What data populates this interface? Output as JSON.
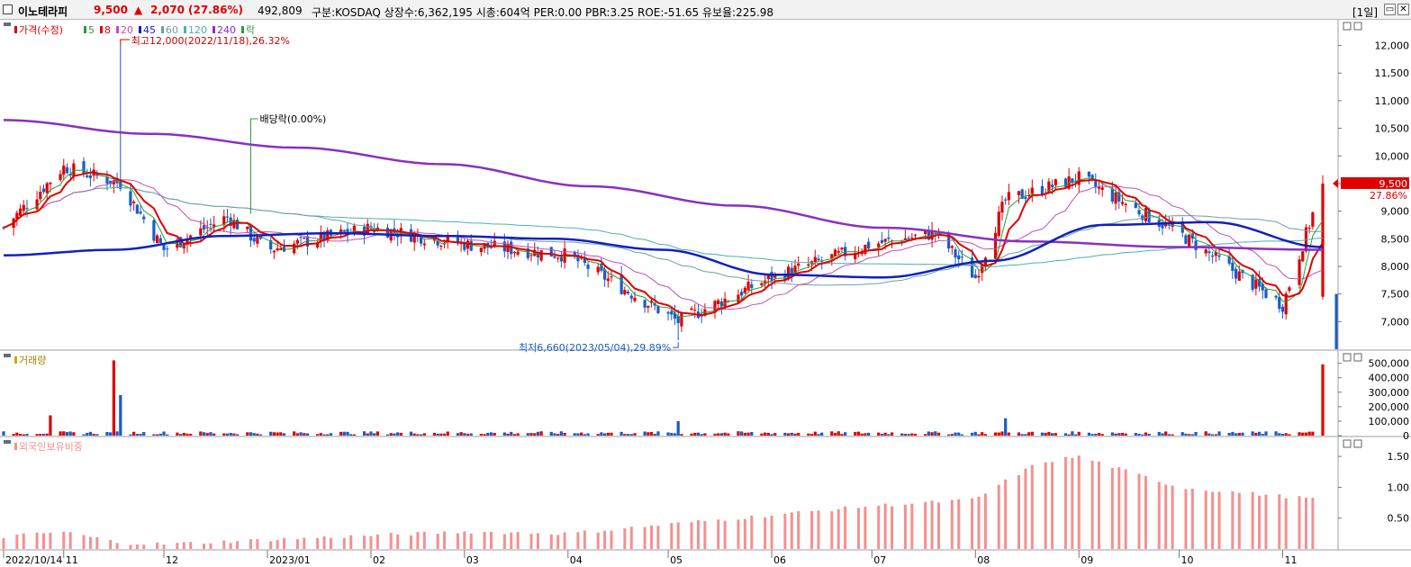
{
  "header": {
    "stock_name": "이노테라피",
    "price": "9,500",
    "change_arrow": "▲",
    "change": "2,070",
    "change_pct": "(27.86%)",
    "volume": "492,809",
    "info": "구분:KOSDAQ 상장수:6,362,195 시총:604억 PER:0.00 PBR:3.25 ROE:-51.65 유보율:225.98",
    "period": "[1일]",
    "min_btn": "▭",
    "close_btn": "✕"
  },
  "colors": {
    "up": "#e00000",
    "down": "#1a5cc8",
    "ma5": "#2e9c3a",
    "ma8": "#e00000",
    "ma20": "#c050b8",
    "ma45": "#1020c0",
    "ma60": "#6aa2a0",
    "ma120": "#4bb0b0",
    "ma240": "#8a2fbf",
    "foreign": "#f49090"
  },
  "chart_data": [
    {
      "type": "candlestick",
      "title": "가격(수정)",
      "legend": [
        {
          "label": "가격(수정)",
          "color": "#e00000"
        },
        {
          "label": "5",
          "color": "#2e9c3a"
        },
        {
          "label": "8",
          "color": "#e00000"
        },
        {
          "label": "20",
          "color": "#c050b8"
        },
        {
          "label": "45",
          "color": "#1020c0"
        },
        {
          "label": "60",
          "color": "#6aa2a0"
        },
        {
          "label": "120",
          "color": "#4bb0b0"
        },
        {
          "label": "240",
          "color": "#8a2fbf"
        },
        {
          "label": "락",
          "color": "#2e9c3a"
        }
      ],
      "ylim": [
        6500,
        12400
      ],
      "yticks": [
        7000,
        7500,
        8000,
        8500,
        9000,
        9500,
        10000,
        10500,
        11000,
        11500,
        12000
      ],
      "ytick_labels": [
        "7,000",
        "7,500",
        "8,000",
        "8,500",
        "9,000",
        "9,500",
        "10,000",
        "10,500",
        "11,000",
        "11,500",
        "12,000"
      ],
      "x_labels": [
        "2022/10/14",
        "11",
        "12",
        "2023/01",
        "02",
        "03",
        "04",
        "05",
        "06",
        "07",
        "08",
        "09",
        "10",
        "11"
      ],
      "ohlc_anchors": [
        {
          "date": "2022/10/14",
          "close": 8700
        },
        {
          "date": "2022/11/01",
          "close": 9800
        },
        {
          "date": "2022/11/18",
          "close": 9500,
          "high": 12000
        },
        {
          "date": "2022/12/01",
          "close": 8300
        },
        {
          "date": "2022/12/20",
          "close": 8900
        },
        {
          "date": "2023/01/01",
          "close": 8300
        },
        {
          "date": "2023/02/01",
          "close": 8700
        },
        {
          "date": "2023/03/01",
          "close": 8400
        },
        {
          "date": "2023/04/01",
          "close": 8200
        },
        {
          "date": "2023/05/04",
          "close": 7000,
          "low": 6660
        },
        {
          "date": "2023/06/01",
          "close": 7800
        },
        {
          "date": "2023/07/01",
          "close": 8400
        },
        {
          "date": "2023/07/20",
          "close": 8600
        },
        {
          "date": "2023/08/01",
          "close": 7800
        },
        {
          "date": "2023/08/10",
          "close": 9200
        },
        {
          "date": "2023/09/01",
          "close": 9600
        },
        {
          "date": "2023/10/01",
          "close": 8600
        },
        {
          "date": "2023/11/01",
          "close": 7300
        },
        {
          "date": "2023/11/13",
          "close": 9500
        }
      ],
      "ma240": [
        10650,
        10400,
        10150,
        9850,
        9450,
        9100,
        8700,
        8450,
        8350,
        8300
      ],
      "ma45": [
        8200,
        8300,
        8550,
        8600,
        8550,
        8500,
        8300,
        7850,
        7800,
        8100,
        8750,
        8800,
        8350
      ],
      "annotations": {
        "high": "최고12,000(2022/11/18),26.32%",
        "low": "최저6,660(2023/05/04),29.89%",
        "dividend": "배당락(0.00%)"
      },
      "last_price_label": "9,500",
      "last_change_label": "27.86%"
    },
    {
      "type": "bar",
      "title": "거래량",
      "ylim": [
        0,
        560000
      ],
      "yticks": [
        0,
        100000,
        200000,
        300000,
        400000,
        500000
      ],
      "ytick_labels": [
        "0",
        "100,000",
        "200,000",
        "300,000",
        "400,000",
        "500,000"
      ],
      "spikes": [
        {
          "date": "2022/10/28",
          "value": 140000
        },
        {
          "date": "2022/11/16",
          "value": 520000
        },
        {
          "date": "2022/11/18",
          "value": 280000
        },
        {
          "date": "2023/05/04",
          "value": 100000
        },
        {
          "date": "2023/08/10",
          "value": 120000
        },
        {
          "date": "2023/11/13",
          "value": 492809
        }
      ]
    },
    {
      "type": "bar",
      "title": "외국인보유비중",
      "ylim": [
        0.0,
        1.75
      ],
      "yticks": [
        0.5,
        1.0,
        1.5
      ],
      "ytick_labels": [
        "0.50",
        "1.00",
        "1.50"
      ],
      "anchors": [
        {
          "date": "2022/10/14",
          "value": 0.2
        },
        {
          "date": "2022/11/01",
          "value": 0.28
        },
        {
          "date": "2022/11/18",
          "value": 0.1
        },
        {
          "date": "2022/12/01",
          "value": 0.08
        },
        {
          "date": "2023/01/01",
          "value": 0.15
        },
        {
          "date": "2023/03/01",
          "value": 0.28
        },
        {
          "date": "2023/04/01",
          "value": 0.25
        },
        {
          "date": "2023/05/01",
          "value": 0.4
        },
        {
          "date": "2023/06/01",
          "value": 0.55
        },
        {
          "date": "2023/07/01",
          "value": 0.7
        },
        {
          "date": "2023/08/01",
          "value": 0.8
        },
        {
          "date": "2023/08/10",
          "value": 1.1
        },
        {
          "date": "2023/08/20",
          "value": 1.4
        },
        {
          "date": "2023/09/01",
          "value": 1.5
        },
        {
          "date": "2023/10/01",
          "value": 1.0
        },
        {
          "date": "2023/11/13",
          "value": 0.8
        }
      ]
    }
  ]
}
